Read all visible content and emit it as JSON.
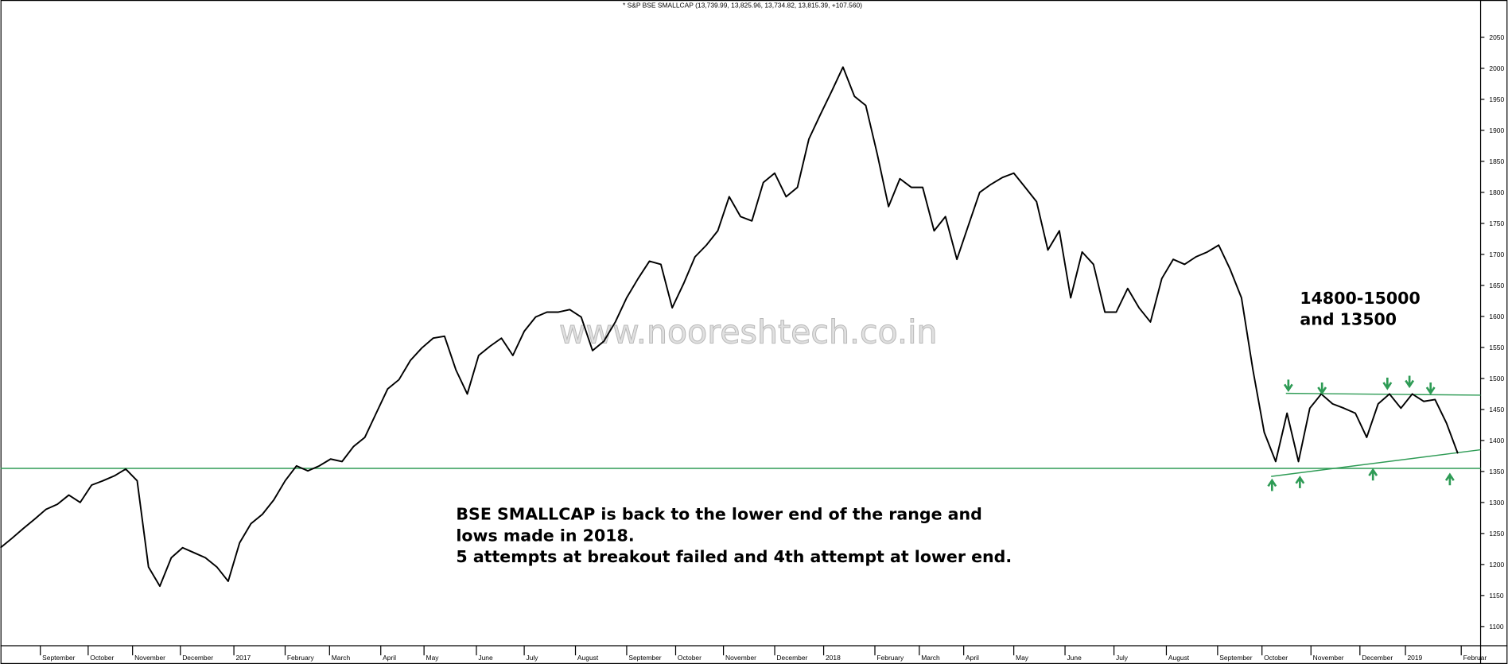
{
  "chart_data": {
    "type": "line",
    "title": "* S&P BSE SMALLCAP (13,739.99, 13,825.96, 13,734.82, 13,815.39, +107.560)",
    "color": "#000000",
    "x": [
      0,
      1,
      2,
      3,
      4,
      5,
      6,
      7,
      8,
      9,
      10,
      11,
      12,
      13,
      14,
      15,
      16,
      17,
      18,
      19,
      20,
      21,
      22,
      23,
      24,
      25,
      26,
      27,
      28,
      29,
      30,
      31,
      32,
      33,
      34,
      35,
      36,
      37,
      38,
      39,
      40,
      41,
      42,
      43,
      44,
      45,
      46,
      47,
      48,
      49,
      50,
      51,
      52,
      53,
      54,
      55,
      56,
      57,
      58,
      59,
      60,
      61,
      62,
      63,
      64,
      65,
      66,
      67,
      68,
      69,
      70,
      71,
      72,
      73,
      74,
      75,
      76,
      77,
      78,
      79,
      80,
      81,
      82,
      83,
      84,
      85,
      86,
      87,
      88,
      89,
      90,
      91,
      92,
      93,
      94,
      95,
      96,
      97,
      98,
      99,
      100,
      101,
      102,
      103,
      104,
      105,
      106,
      107,
      108,
      109,
      110,
      111,
      112,
      113,
      114,
      115,
      116,
      117,
      118,
      119,
      120,
      121,
      122,
      123,
      124,
      125,
      126,
      127,
      128
    ],
    "values": [
      1227,
      1242,
      1258,
      1273,
      1289,
      1297,
      1312,
      1300,
      1328,
      1335,
      1343,
      1354,
      1335,
      1196,
      1165,
      1211,
      1227,
      1219,
      1211,
      1196,
      1173,
      1235,
      1266,
      1281,
      1304,
      1335,
      1359,
      1351,
      1359,
      1370,
      1366,
      1390,
      1405,
      1444,
      1483,
      1498,
      1529,
      1549,
      1565,
      1568,
      1514,
      1475,
      1537,
      1552,
      1565,
      1537,
      1576,
      1599,
      1607,
      1607,
      1611,
      1599,
      1545,
      1560,
      1591,
      1630,
      1661,
      1689,
      1684,
      1614,
      1653,
      1696,
      1715,
      1738,
      1793,
      1761,
      1754,
      1816,
      1831,
      1793,
      1808,
      1886,
      1925,
      1963,
      2002,
      1955,
      1940,
      1862,
      1777,
      1822,
      1808,
      1808,
      1738,
      1761,
      1692,
      1746,
      1800,
      1813,
      1824,
      1831,
      1808,
      1785,
      1707,
      1738,
      1630,
      1704,
      1684,
      1607,
      1607,
      1645,
      1614,
      1591,
      1661,
      1692,
      1684,
      1696,
      1704,
      1715,
      1676,
      1630,
      1514,
      1413,
      1366,
      1444,
      1366,
      1452,
      1475,
      1459,
      1452,
      1444,
      1405,
      1459,
      1475,
      1452,
      1475,
      1463,
      1466,
      1428,
      1379
    ],
    "xlim": [
      0,
      130
    ],
    "xticks": [
      {
        "value": 3.5,
        "label": "September"
      },
      {
        "value": 7.7,
        "label": "October"
      },
      {
        "value": 11.6,
        "label": "November"
      },
      {
        "value": 15.8,
        "label": "December"
      },
      {
        "value": 20.5,
        "label": "2017"
      },
      {
        "value": 25.0,
        "label": "February"
      },
      {
        "value": 28.9,
        "label": "March"
      },
      {
        "value": 33.4,
        "label": "April"
      },
      {
        "value": 37.2,
        "label": "May"
      },
      {
        "value": 41.8,
        "label": "June"
      },
      {
        "value": 46.0,
        "label": "July"
      },
      {
        "value": 50.5,
        "label": "August"
      },
      {
        "value": 55.0,
        "label": "September"
      },
      {
        "value": 59.3,
        "label": "October"
      },
      {
        "value": 63.5,
        "label": "November"
      },
      {
        "value": 68.0,
        "label": "December"
      },
      {
        "value": 72.3,
        "label": "2018"
      },
      {
        "value": 76.8,
        "label": "February"
      },
      {
        "value": 80.7,
        "label": "March"
      },
      {
        "value": 84.6,
        "label": "April"
      },
      {
        "value": 89.0,
        "label": "May"
      },
      {
        "value": 93.5,
        "label": "June"
      },
      {
        "value": 97.8,
        "label": "July"
      },
      {
        "value": 102.4,
        "label": "August"
      },
      {
        "value": 106.9,
        "label": "September"
      },
      {
        "value": 110.8,
        "label": "October"
      },
      {
        "value": 115.1,
        "label": "November"
      },
      {
        "value": 119.4,
        "label": "December"
      },
      {
        "value": 123.4,
        "label": "2019"
      },
      {
        "value": 128.3,
        "label": "Februar"
      }
    ],
    "ylim": [
      1069,
      2104
    ],
    "yticks": [
      1100,
      1150,
      1200,
      1250,
      1300,
      1350,
      1400,
      1450,
      1500,
      1550,
      1600,
      1650,
      1700,
      1750,
      1800,
      1850,
      1900,
      1950,
      2000,
      2050
    ],
    "reference_lines": {
      "color": "#2e9b55",
      "lines": [
        {
          "x": [
            0,
            130
          ],
          "y": [
            1355,
            1355
          ]
        },
        {
          "x": [
            112.9,
            130
          ],
          "y": [
            1476,
            1473
          ]
        },
        {
          "x": [
            111.6,
            130
          ],
          "y": [
            1342,
            1385
          ]
        }
      ]
    },
    "annotations": {
      "range_note": [
        "14800-15000",
        "and 13500"
      ],
      "comment": [
        "BSE SMALLCAP is back to the lower end of the range and",
        "lows made in 2018.",
        "5 attempts at breakout failed and 4th attempt at lower end."
      ]
    },
    "watermark": "www.nooreshtech.co.in"
  }
}
